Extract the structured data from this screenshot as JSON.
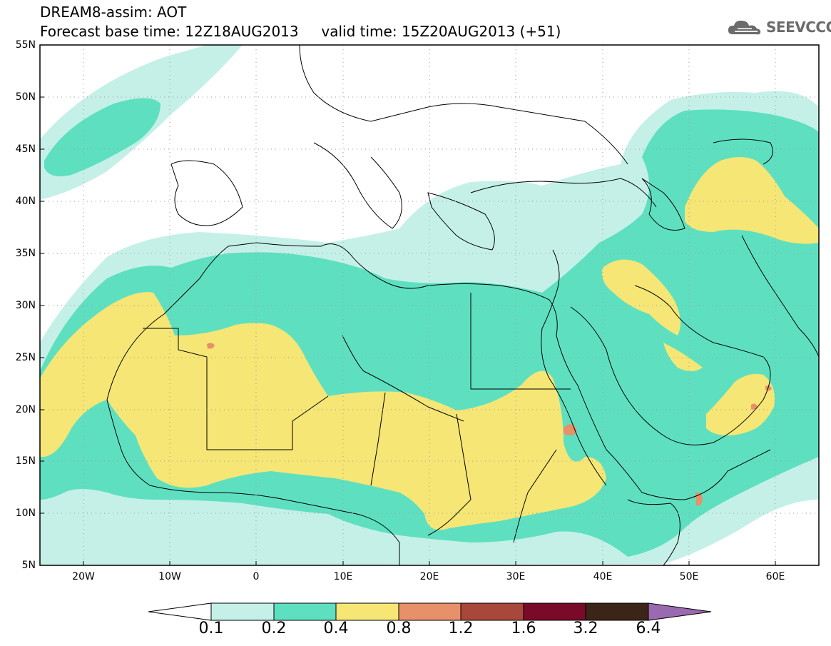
{
  "header": {
    "line1": "DREAM8-assim: AOT",
    "line2": "Forecast base time: 12Z18AUG2013     valid time: 15Z20AUG2013 (+51)"
  },
  "logo": {
    "text": "SEEVCCC",
    "icon": "cloud-icon"
  },
  "map": {
    "variable": "AOT",
    "projection": "lat-lon",
    "lon_range": [
      -25,
      65
    ],
    "lat_range": [
      5,
      55
    ],
    "gridlines": "dotted",
    "y_ticks": [
      "55N",
      "50N",
      "45N",
      "40N",
      "35N",
      "30N",
      "25N",
      "20N",
      "15N",
      "10N",
      "5N"
    ],
    "x_ticks": [
      "20W",
      "10W",
      "0",
      "10E",
      "20E",
      "30E",
      "40E",
      "50E",
      "60E"
    ]
  },
  "colorbar": {
    "labels": [
      "0.1",
      "0.2",
      "0.4",
      "0.8",
      "1.2",
      "1.6",
      "3.2",
      "6.4"
    ],
    "colors": [
      "#ffffff",
      "#c5f0e8",
      "#5ee0c0",
      "#f5e676",
      "#e8906a",
      "#a8483a",
      "#7a0a2a",
      "#3c2418",
      "#9a6ab0"
    ]
  },
  "colors": {
    "c1": "#c5f0e8",
    "c2": "#5ee0c0",
    "c3": "#f5e676",
    "c4": "#e8906a",
    "line": "#000000"
  }
}
